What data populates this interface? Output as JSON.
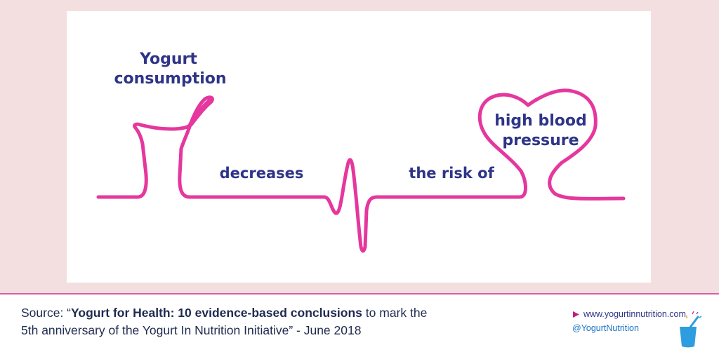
{
  "colors": {
    "background": "#f4dfe0",
    "panel": "#ffffff",
    "line": "#e5379d",
    "text": "#2e3487",
    "divider": "#d65fa8",
    "cup": "#2d9de0"
  },
  "illustration": {
    "label_top_line1": "Yogurt",
    "label_top_line2": "consumption",
    "label_decreases": "decreases",
    "label_risk": "the risk of",
    "label_heart_line1": "high blood",
    "label_heart_line2": "pressure"
  },
  "footer": {
    "source_prefix": "Source: “",
    "source_title": "Yogurt for Health: 10 evidence-based conclusions",
    "source_line1_suffix": " to mark the",
    "source_line2": "5th anniversary of the Yogurt In Nutrition Initiative” - June 2018",
    "website": "www.yogurtinnutrition.com",
    "handle": "@YogurtNutrition",
    "arrow_icon": "play-triangle-icon",
    "logo_icon": "yogurt-cup-icon"
  }
}
